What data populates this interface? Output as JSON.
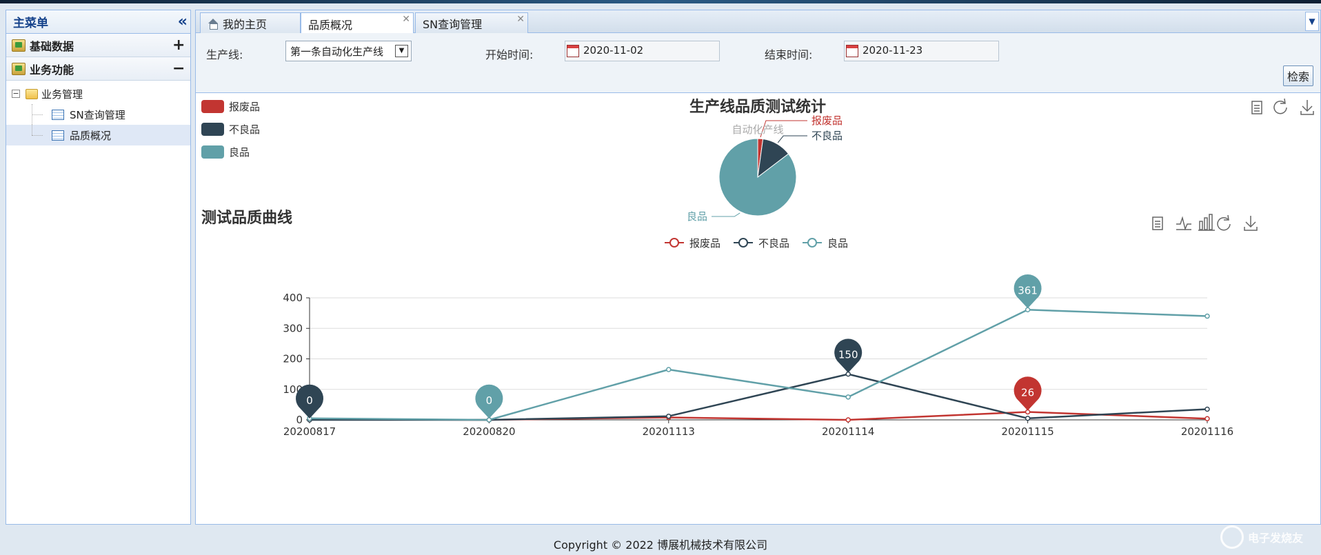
{
  "sidebar": {
    "title": "主菜单",
    "sections": [
      {
        "label": "基础数据",
        "toggle": "+"
      },
      {
        "label": "业务功能",
        "toggle": "−"
      }
    ],
    "tree": {
      "folder": "业务管理",
      "items": [
        {
          "label": "SN查询管理"
        },
        {
          "label": "品质概况"
        }
      ]
    }
  },
  "tabs": [
    {
      "label": "我的主页"
    },
    {
      "label": "品质概况"
    },
    {
      "label": "SN查询管理"
    }
  ],
  "filters": {
    "line_label": "生产线:",
    "line_value": "第一条自动化生产线",
    "start_label": "开始时间:",
    "start_value": "2020-11-02",
    "end_label": "结束时间:",
    "end_value": "2020-11-23",
    "search_label": "检索"
  },
  "pie": {
    "title": "生产线品质测试统计",
    "series_name": "自动化产线",
    "legend": [
      "报废品",
      "不良品",
      "良品"
    ],
    "colors": [
      "#c23531",
      "#2f4554",
      "#61a0a8"
    ],
    "values": [
      26,
      150,
      1025
    ]
  },
  "chart_data": {
    "type": "line",
    "title": "测试品质曲线",
    "categories": [
      "20200817",
      "20200820",
      "20201113",
      "20201114",
      "20201115",
      "20201116"
    ],
    "ylim": [
      0,
      400
    ],
    "yticks": [
      0,
      100,
      200,
      300,
      400
    ],
    "series": [
      {
        "name": "报废品",
        "color": "#c23531",
        "values": [
          2,
          0,
          8,
          0,
          26,
          4
        ],
        "pin": {
          "index": 4,
          "label": "26"
        }
      },
      {
        "name": "不良品",
        "color": "#2f4554",
        "values": [
          0,
          0,
          12,
          150,
          5,
          35
        ],
        "pin": {
          "index": 0,
          "label": "0"
        }
      },
      {
        "name": "良品",
        "color": "#61a0a8",
        "values": [
          5,
          0,
          165,
          75,
          361,
          340
        ],
        "pins": [
          {
            "index": 1,
            "label": "0"
          },
          {
            "index": 4,
            "label": "361"
          }
        ]
      }
    ],
    "extra_pin": {
      "series": 1,
      "index": 3,
      "label": "150"
    }
  },
  "footer": "Copyright © 2022 博展机械技术有限公司",
  "watermark": "电子发烧友"
}
